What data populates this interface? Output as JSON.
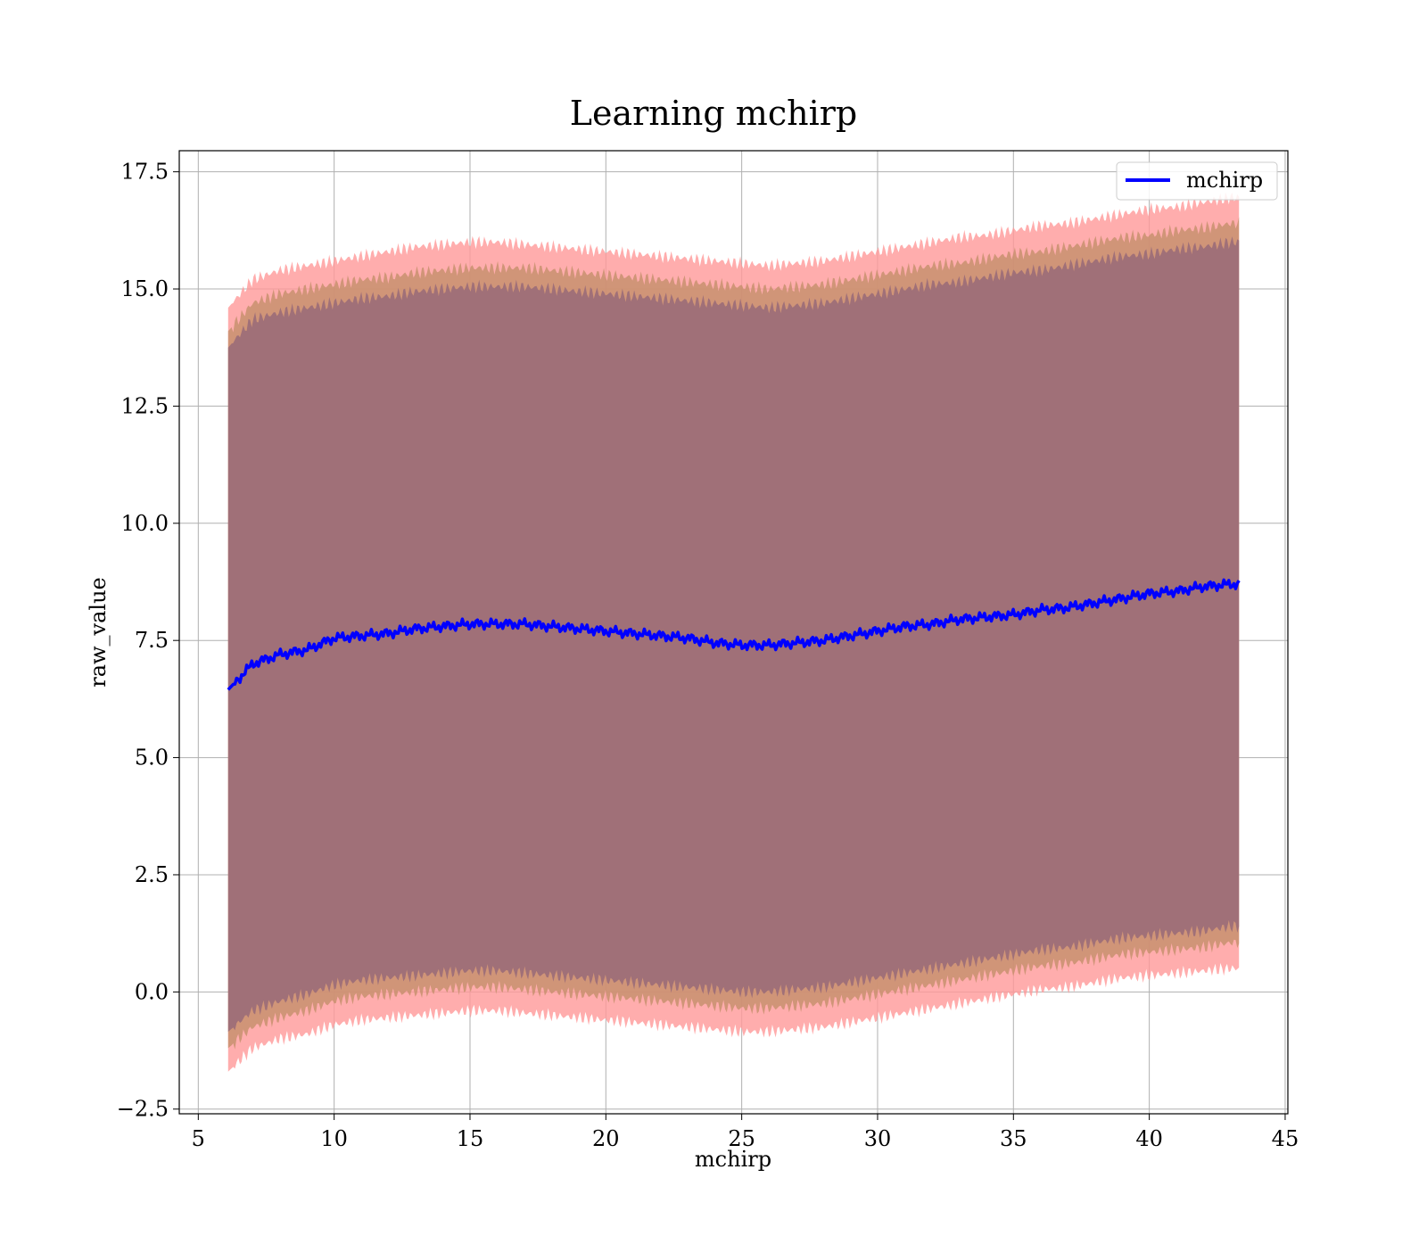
{
  "chart_data": {
    "type": "line",
    "title": "Learning mchirp",
    "xlabel": "mchirp",
    "ylabel": "raw_value",
    "xlim": [
      4.3,
      45.1
    ],
    "ylim": [
      -2.6,
      17.95
    ],
    "xticks": [
      5,
      10,
      15,
      20,
      25,
      30,
      35,
      40,
      45
    ],
    "xtick_labels": [
      "5",
      "10",
      "15",
      "20",
      "25",
      "30",
      "35",
      "40",
      "45"
    ],
    "yticks": [
      -2.5,
      0.0,
      2.5,
      5.0,
      7.5,
      10.0,
      12.5,
      15.0,
      17.5
    ],
    "ytick_labels": [
      "−2.5",
      "0.0",
      "2.5",
      "5.0",
      "7.5",
      "10.0",
      "12.5",
      "15.0",
      "17.5"
    ],
    "grid": true,
    "legend": {
      "placement": "top-right",
      "entries": [
        "mchirp"
      ]
    },
    "colors": {
      "line": "#0000ff",
      "outer_band": "#ff9999",
      "mid_band": "#c8906e",
      "inner_band": "#a07078",
      "grid": "#b0b0b0"
    },
    "x": [
      6.1,
      7,
      8,
      9,
      10,
      11,
      12,
      13,
      14,
      15,
      16,
      17,
      18,
      19,
      20,
      21,
      22,
      23,
      24,
      25,
      26,
      27,
      28,
      29,
      30,
      31,
      32,
      33,
      34,
      35,
      36,
      37,
      38,
      39,
      40,
      41,
      42,
      43,
      43.3
    ],
    "series": [
      {
        "name": "mchirp",
        "values": [
          6.45,
          7.0,
          7.2,
          7.3,
          7.55,
          7.6,
          7.65,
          7.75,
          7.8,
          7.85,
          7.85,
          7.85,
          7.8,
          7.75,
          7.7,
          7.65,
          7.6,
          7.55,
          7.45,
          7.4,
          7.4,
          7.45,
          7.5,
          7.6,
          7.7,
          7.8,
          7.85,
          7.95,
          8.0,
          8.05,
          8.15,
          8.2,
          8.3,
          8.4,
          8.5,
          8.55,
          8.65,
          8.7,
          8.7
        ]
      }
    ],
    "bands": [
      {
        "label": "outer",
        "upper": [
          14.6,
          15.2,
          15.4,
          15.5,
          15.6,
          15.7,
          15.8,
          15.9,
          15.95,
          16.0,
          16.0,
          15.95,
          15.9,
          15.85,
          15.8,
          15.75,
          15.7,
          15.65,
          15.6,
          15.55,
          15.5,
          15.55,
          15.6,
          15.7,
          15.8,
          15.9,
          16.0,
          16.1,
          16.15,
          16.25,
          16.35,
          16.4,
          16.5,
          16.6,
          16.7,
          16.75,
          16.85,
          16.95,
          16.95
        ],
        "lower": [
          -1.7,
          -1.2,
          -1.0,
          -0.9,
          -0.7,
          -0.6,
          -0.55,
          -0.5,
          -0.45,
          -0.4,
          -0.4,
          -0.45,
          -0.5,
          -0.55,
          -0.6,
          -0.65,
          -0.7,
          -0.75,
          -0.8,
          -0.85,
          -0.85,
          -0.8,
          -0.75,
          -0.65,
          -0.55,
          -0.45,
          -0.35,
          -0.25,
          -0.15,
          -0.05,
          0.05,
          0.1,
          0.2,
          0.3,
          0.35,
          0.4,
          0.45,
          0.5,
          0.5
        ]
      },
      {
        "label": "middle",
        "upper": [
          14.1,
          14.7,
          14.9,
          15.0,
          15.1,
          15.2,
          15.25,
          15.35,
          15.4,
          15.45,
          15.45,
          15.45,
          15.4,
          15.35,
          15.3,
          15.25,
          15.2,
          15.15,
          15.1,
          15.05,
          15.0,
          15.05,
          15.1,
          15.2,
          15.3,
          15.4,
          15.5,
          15.55,
          15.65,
          15.75,
          15.8,
          15.9,
          16.0,
          16.1,
          16.15,
          16.25,
          16.3,
          16.4,
          16.4
        ],
        "lower": [
          -1.2,
          -0.75,
          -0.55,
          -0.4,
          -0.2,
          -0.1,
          -0.05,
          0.0,
          0.05,
          0.1,
          0.1,
          0.05,
          0.0,
          -0.05,
          -0.1,
          -0.15,
          -0.2,
          -0.25,
          -0.3,
          -0.35,
          -0.35,
          -0.3,
          -0.25,
          -0.15,
          -0.05,
          0.05,
          0.15,
          0.25,
          0.35,
          0.45,
          0.55,
          0.6,
          0.7,
          0.8,
          0.85,
          0.9,
          0.95,
          1.05,
          1.05
        ]
      },
      {
        "label": "inner",
        "upper": [
          13.75,
          14.35,
          14.5,
          14.6,
          14.7,
          14.8,
          14.85,
          14.95,
          15.0,
          15.05,
          15.05,
          15.05,
          15.0,
          14.95,
          14.9,
          14.85,
          14.8,
          14.75,
          14.7,
          14.65,
          14.6,
          14.65,
          14.7,
          14.8,
          14.9,
          15.0,
          15.1,
          15.15,
          15.25,
          15.35,
          15.4,
          15.5,
          15.6,
          15.7,
          15.75,
          15.85,
          15.9,
          16.0,
          16.0
        ],
        "lower": [
          -0.85,
          -0.4,
          -0.2,
          -0.05,
          0.15,
          0.25,
          0.3,
          0.35,
          0.4,
          0.45,
          0.45,
          0.4,
          0.35,
          0.3,
          0.25,
          0.2,
          0.15,
          0.1,
          0.05,
          0.0,
          0.0,
          0.05,
          0.1,
          0.2,
          0.3,
          0.4,
          0.5,
          0.6,
          0.7,
          0.8,
          0.9,
          0.95,
          1.05,
          1.15,
          1.2,
          1.25,
          1.3,
          1.4,
          1.4
        ]
      }
    ]
  }
}
